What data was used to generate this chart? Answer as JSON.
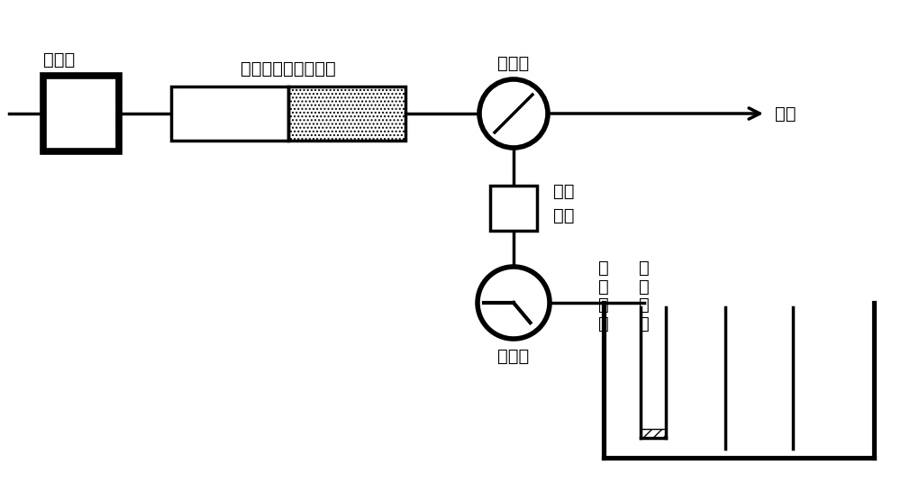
{
  "bg_color": "#ffffff",
  "line_color": "#000000",
  "line_width": 2.5,
  "labels": {
    "peristaltic_pump": "蚀动泵",
    "column": "分子印迹固相萌取柱",
    "valve1": "转换阀",
    "waste": "废液",
    "nitrogen": "氮吹\n装置",
    "valve2": "转换阀",
    "working_electrode": "工\n作\n电\n极",
    "ref_electrode": "参\n比\n电\n极"
  },
  "font_size": 14
}
